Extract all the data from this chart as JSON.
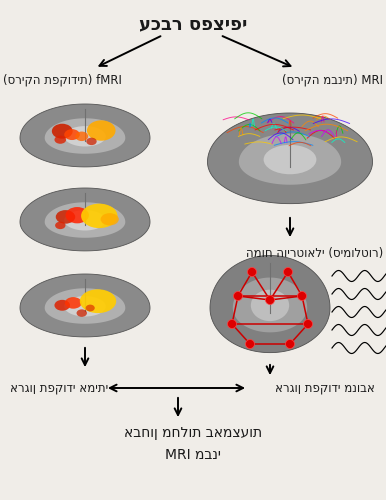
{
  "bg_color": "#f0ede8",
  "title": "עכבר ספציפי",
  "left_label": "(סריקה תפקודית) fMRI",
  "right_label": "(סריקה מבנית) MRI",
  "virtual_brain_label": "המוח הוירטואלי (סימולטור)",
  "predicted_label": "ארגון תפקודי מנובא",
  "real_label": "ארגון תפקודי אמיתי",
  "bottom_line1": "אבחון מחלות באמצעות",
  "bottom_line2": "MRI מבני",
  "font_size_title": 13,
  "font_size_labels": 8.5,
  "font_size_bottom": 10
}
